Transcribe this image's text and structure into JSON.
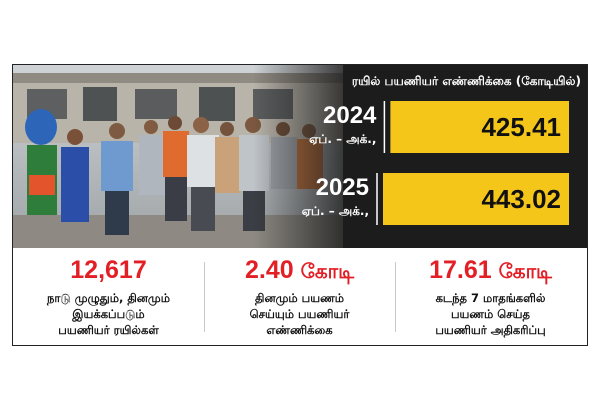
{
  "colors": {
    "accent": "#f5c61a",
    "banner": "#1c1c1c",
    "stat": "#e31f26"
  },
  "chart_data": {
    "type": "bar",
    "orientation": "horizontal",
    "title": "ரயில் பயணியர் எண்ணிக்கை (கோடியில்)",
    "categories": [
      "2024",
      "2025"
    ],
    "category_subtitles": [
      "ஏப். – அக்.,",
      "ஏப். – அக்.,"
    ],
    "values": [
      425.41,
      443.02
    ],
    "data_labels": [
      "425.41",
      "443.02"
    ],
    "xlim": [
      0,
      443.02
    ],
    "grid": false,
    "legend": "none"
  },
  "stats": [
    {
      "value": "12,617",
      "unit": "",
      "lines": [
        "நாடு முழுதும், தினமும்",
        "இயக்கப்படும்",
        "பயணியர் ரயில்கள்"
      ]
    },
    {
      "value": "2.40",
      "unit": "கோடி",
      "lines": [
        "தினமும் பயணம்",
        "செய்யும் பயணியர்",
        "எண்ணிக்கை"
      ]
    },
    {
      "value": "17.61",
      "unit": "கோடி",
      "lines": [
        "கடந்த 7 மாதங்களில்",
        "பயணம் செய்த",
        "பயணியர் அதிகரிப்பு"
      ]
    }
  ]
}
